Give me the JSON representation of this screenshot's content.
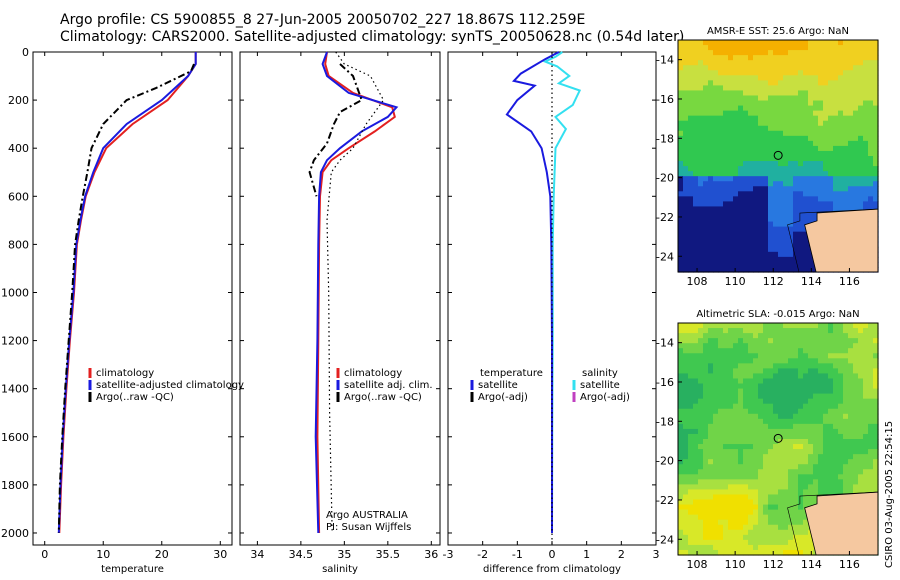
{
  "header": {
    "line1": "Argo profile: CS 5900855_8 27-Jun-2005 20050702_227 18.867S 112.259E",
    "line2": "Climatology: CARS2000. Satellite-adjusted climatology: synTS_20050628.nc (0.54d later)"
  },
  "timestamp": "CSIRO 03-Aug-2005 22:54:15",
  "credits": {
    "line1": "Argo AUSTRALIA",
    "line2": "PI: Susan Wijffels"
  },
  "colors": {
    "climatology": "#e32020",
    "satellite": "#1a1adf",
    "argo": "#000000",
    "satellite_salinity": "#33e0f0",
    "argo_adj_salinity": "#c040c0",
    "land": "#f5c8a0"
  },
  "chart_data": [
    {
      "type": "line",
      "xlabel": "temperature",
      "xlim": [
        -2,
        32
      ],
      "ylim": [
        2050,
        0
      ],
      "xticks": [
        0,
        10,
        20,
        30
      ],
      "yticks": [
        0,
        200,
        400,
        600,
        800,
        1000,
        1200,
        1400,
        1600,
        1800,
        2000
      ],
      "legend": [
        "climatology",
        "satellite-adjusted climatology",
        "Argo(..raw -QC)"
      ],
      "series": [
        {
          "name": "climatology",
          "style": "solid",
          "color": "#e32020",
          "points": [
            [
              25.8,
              0
            ],
            [
              25.8,
              50
            ],
            [
              24.5,
              100
            ],
            [
              21,
              200
            ],
            [
              15,
              300
            ],
            [
              10.5,
              400
            ],
            [
              8.5,
              500
            ],
            [
              7,
              600
            ],
            [
              6.2,
              700
            ],
            [
              5.5,
              800
            ],
            [
              5,
              1000
            ],
            [
              4.3,
              1200
            ],
            [
              3.7,
              1400
            ],
            [
              3.2,
              1600
            ],
            [
              2.8,
              1800
            ],
            [
              2.5,
              2000
            ]
          ]
        },
        {
          "name": "satellite-adjusted climatology",
          "style": "solid",
          "color": "#1a1adf",
          "points": [
            [
              25.8,
              0
            ],
            [
              25.8,
              50
            ],
            [
              24.5,
              100
            ],
            [
              20,
              200
            ],
            [
              14,
              300
            ],
            [
              10,
              400
            ],
            [
              8.3,
              500
            ],
            [
              6.9,
              600
            ],
            [
              6.1,
              700
            ],
            [
              5.4,
              800
            ],
            [
              4.9,
              1000
            ],
            [
              4.2,
              1200
            ],
            [
              3.6,
              1400
            ],
            [
              3.1,
              1600
            ],
            [
              2.7,
              1800
            ],
            [
              2.4,
              2000
            ]
          ]
        },
        {
          "name": "Argo(..raw -QC)",
          "style": "dashdot",
          "color": "#000000",
          "points": [
            [
              25.5,
              50
            ],
            [
              25,
              80
            ],
            [
              19,
              150
            ],
            [
              14,
              200
            ],
            [
              10,
              300
            ],
            [
              8,
              400
            ],
            [
              7.3,
              500
            ],
            [
              6.5,
              600
            ],
            [
              5.8,
              700
            ],
            [
              5.2,
              800
            ],
            [
              4.7,
              1000
            ],
            [
              4.1,
              1200
            ],
            [
              3.5,
              1400
            ],
            [
              3,
              1600
            ],
            [
              2.6,
              1800
            ],
            [
              2.4,
              2000
            ]
          ]
        }
      ]
    },
    {
      "type": "line",
      "xlabel": "salinity",
      "xlim": [
        33.8,
        36.1
      ],
      "ylim": [
        2050,
        0
      ],
      "xticks": [
        34,
        34.5,
        35,
        35.5,
        36
      ],
      "legend": [
        "climatology",
        "satellite adj. clim.",
        "Argo(..raw -QC)"
      ],
      "series": [
        {
          "name": "climatology",
          "style": "solid",
          "color": "#e32020",
          "points": [
            [
              34.8,
              0
            ],
            [
              34.78,
              50
            ],
            [
              34.82,
              100
            ],
            [
              35.1,
              170
            ],
            [
              35.55,
              230
            ],
            [
              35.58,
              270
            ],
            [
              35.35,
              330
            ],
            [
              35.05,
              400
            ],
            [
              34.85,
              450
            ],
            [
              34.75,
              500
            ],
            [
              34.72,
              600
            ],
            [
              34.71,
              800
            ],
            [
              34.7,
              1200
            ],
            [
              34.69,
              1600
            ],
            [
              34.71,
              2000
            ]
          ]
        },
        {
          "name": "satellite adj. clim.",
          "style": "solid",
          "color": "#1a1adf",
          "points": [
            [
              34.8,
              0
            ],
            [
              34.75,
              50
            ],
            [
              34.8,
              100
            ],
            [
              35.05,
              170
            ],
            [
              35.6,
              230
            ],
            [
              35.5,
              270
            ],
            [
              35.2,
              330
            ],
            [
              34.95,
              400
            ],
            [
              34.8,
              450
            ],
            [
              34.73,
              500
            ],
            [
              34.71,
              600
            ],
            [
              34.7,
              800
            ],
            [
              34.69,
              1200
            ],
            [
              34.67,
              1600
            ],
            [
              34.7,
              2000
            ]
          ]
        },
        {
          "name": "Argo(..raw -QC)",
          "style": "dashdot",
          "color": "#000000",
          "points": [
            [
              34.95,
              50
            ],
            [
              35.1,
              100
            ],
            [
              35.15,
              150
            ],
            [
              35.2,
              200
            ],
            [
              34.95,
              250
            ],
            [
              34.88,
              300
            ],
            [
              34.8,
              380
            ],
            [
              34.65,
              450
            ],
            [
              34.6,
              500
            ],
            [
              34.68,
              600
            ]
          ]
        },
        {
          "name": "dotted reference",
          "style": "dotted",
          "color": "#000000",
          "points": [
            [
              34.9,
              0
            ],
            [
              35.0,
              50
            ],
            [
              35.3,
              100
            ],
            [
              35.45,
              200
            ],
            [
              35.25,
              300
            ],
            [
              35.1,
              400
            ],
            [
              34.95,
              450
            ],
            [
              34.85,
              500
            ],
            [
              34.8,
              700
            ],
            [
              34.82,
              1000
            ],
            [
              34.83,
              1500
            ],
            [
              34.86,
              2000
            ]
          ]
        }
      ],
      "credits": true
    },
    {
      "type": "line",
      "xlabel": "difference from climatology",
      "xlim": [
        -3,
        3
      ],
      "ylim": [
        2050,
        0
      ],
      "xticks": [
        -3,
        -2,
        -1,
        0,
        1,
        2,
        3
      ],
      "legend_left": [
        "temperature",
        "satellite",
        "Argo(-adj)"
      ],
      "legend_right": [
        "salinity",
        "satellite",
        "Argo(-adj)"
      ],
      "series": [
        {
          "name": "satellite",
          "style": "solid",
          "color": "#33e0f0",
          "points": [
            [
              0.3,
              0
            ],
            [
              0.1,
              20
            ],
            [
              -0.2,
              40
            ],
            [
              0.15,
              60
            ],
            [
              0.5,
              100
            ],
            [
              0.2,
              130
            ],
            [
              0.8,
              160
            ],
            [
              0.6,
              220
            ],
            [
              0.1,
              270
            ],
            [
              0.4,
              320
            ],
            [
              0.1,
              400
            ],
            [
              0.05,
              600
            ],
            [
              0.02,
              800
            ],
            [
              0.02,
              1200
            ],
            [
              0.01,
              1500
            ],
            [
              0,
              2000
            ]
          ]
        },
        {
          "name": "satellite",
          "style": "solid",
          "color": "#1a1adf",
          "points": [
            [
              0.2,
              0
            ],
            [
              -0.2,
              30
            ],
            [
              -0.9,
              90
            ],
            [
              -1.1,
              120
            ],
            [
              -0.5,
              140
            ],
            [
              -1.0,
              200
            ],
            [
              -1.3,
              260
            ],
            [
              -0.6,
              330
            ],
            [
              -0.3,
              400
            ],
            [
              -0.15,
              500
            ],
            [
              -0.05,
              600
            ],
            [
              -0.02,
              800
            ],
            [
              0,
              1200
            ],
            [
              0,
              1600
            ],
            [
              0,
              2000
            ]
          ]
        },
        {
          "name": "zero",
          "style": "dotted",
          "color": "#000000",
          "points": [
            [
              0,
              0
            ],
            [
              0,
              2050
            ]
          ]
        }
      ]
    }
  ],
  "maps": [
    {
      "title": "AMSR-E SST: 25.6 Argo: NaN",
      "xticks": [
        "108",
        "110",
        "112",
        "114",
        "116"
      ],
      "yticks": [
        "-14",
        "-16",
        "-18",
        "-20",
        "-22",
        "-24"
      ],
      "colormap": "sst"
    },
    {
      "title": "Altimetric SLA: -0.015 Argo: NaN",
      "xticks": [
        "108",
        "110",
        "112",
        "114",
        "116"
      ],
      "yticks": [
        "-14",
        "-16",
        "-18",
        "-20",
        "-22",
        "-24"
      ],
      "colormap": "sla"
    }
  ]
}
